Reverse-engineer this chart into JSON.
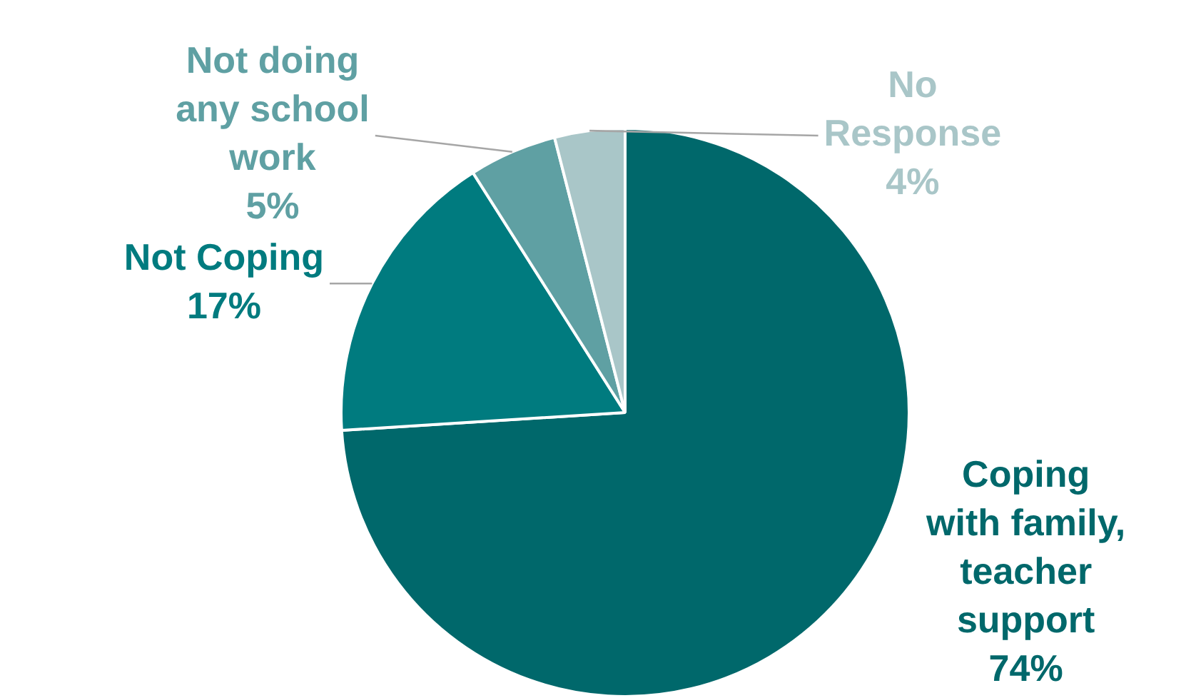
{
  "chart_data": {
    "type": "pie",
    "categories": [
      "Coping with family, teacher support",
      "Not Coping",
      "Not doing any school work",
      "No Response"
    ],
    "values": [
      74,
      17,
      5,
      4
    ],
    "value_labels": [
      "74%",
      "17%",
      "5%",
      "4%"
    ],
    "colors": [
      "#00686b",
      "#007b7f",
      "#5fa0a3",
      "#a9c6c8"
    ],
    "legend": false
  }
}
